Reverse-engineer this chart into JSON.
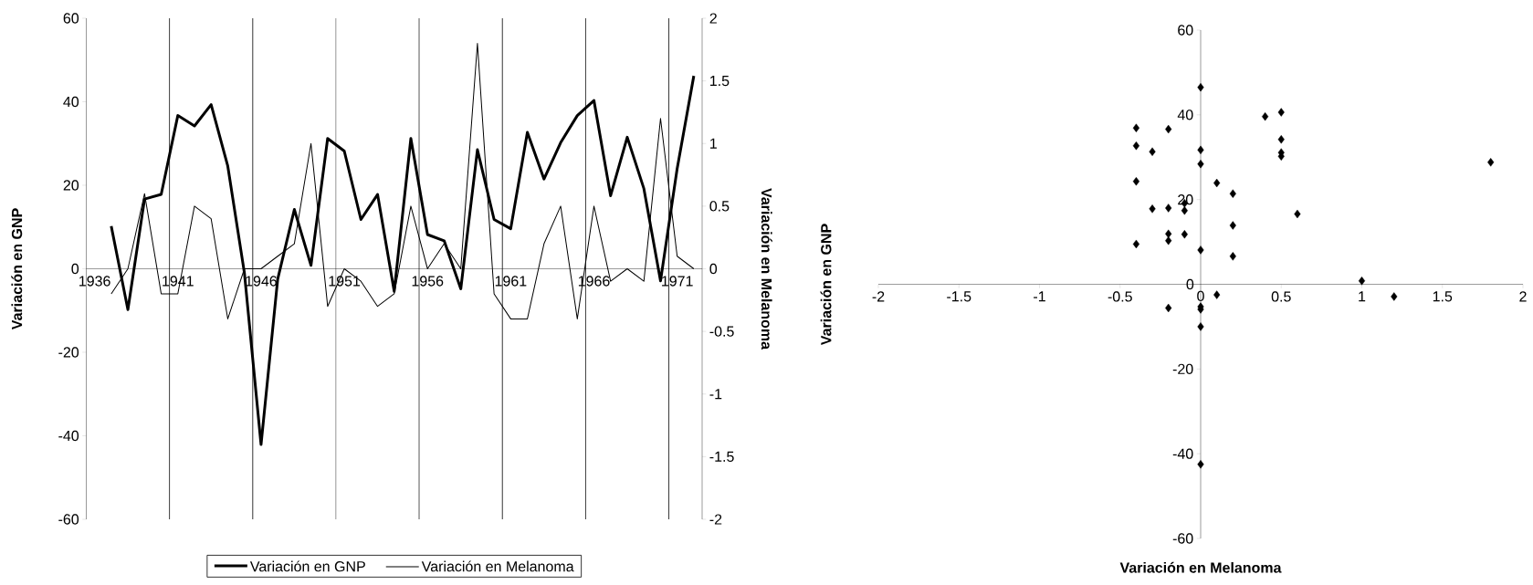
{
  "chart_data": [
    {
      "type": "line",
      "categories": [
        "1936",
        null,
        null,
        null,
        null,
        "1941",
        null,
        null,
        null,
        null,
        "1946",
        null,
        null,
        null,
        null,
        "1951",
        null,
        null,
        null,
        null,
        "1956",
        null,
        null,
        null,
        null,
        "1961",
        null,
        null,
        null,
        null,
        "1966",
        null,
        null,
        null,
        null,
        "1971",
        null
      ],
      "series": [
        {
          "name": "Variación en GNP",
          "color": "#000000",
          "values": [
            null,
            10.2,
            -9.8,
            16.7,
            17.8,
            36.7,
            34.2,
            39.3,
            24.6,
            -1,
            -42.1,
            -2.5,
            14.2,
            0.8,
            31.2,
            28.2,
            11.8,
            17.8,
            -5.4,
            31.2,
            8.2,
            6.7,
            -4.8,
            28.5,
            11.8,
            9.6,
            32.7,
            21.5,
            30.2,
            36.7,
            40.3,
            17.5,
            31.5,
            19.2,
            -2.9,
            24,
            46.2
          ]
        },
        {
          "name": "Variación en Melanoma",
          "color": "#000000",
          "axis": "y2",
          "values": [
            null,
            -0.2,
            0,
            0.6,
            -0.2,
            -0.2,
            0.5,
            0.4,
            -0.4,
            0,
            0,
            0.1,
            0.2,
            1,
            -0.3,
            0,
            -0.1,
            -0.3,
            -0.2,
            0.5,
            0,
            0.2,
            0,
            1.8,
            -0.2,
            -0.4,
            -0.4,
            0.2,
            0.5,
            -0.4,
            0.5,
            -0.1,
            0,
            -0.1,
            1.2,
            0.1,
            0
          ]
        }
      ],
      "ylabel": "Variación en GNP",
      "y2label": "Variación en Melanoma",
      "ylim": [
        -60,
        60
      ],
      "yticks": [
        -60,
        -40,
        -20,
        0,
        20,
        40,
        60
      ],
      "y2lim": [
        -2,
        2
      ],
      "y2ticks": [
        -2,
        -1.5,
        -1,
        -0.5,
        0,
        0.5,
        1,
        1.5,
        2
      ],
      "grid": "x",
      "legend": "bottom"
    },
    {
      "type": "scatter",
      "marker": "diamond",
      "color": "#000000",
      "x": [
        0,
        -0.4,
        -0.2,
        -0.4,
        -0.3,
        0,
        0,
        0.4,
        0.5,
        0.5,
        0.5,
        0.5,
        1.8,
        -0.4,
        0.1,
        0.2,
        -0.1,
        -0.3,
        -0.2,
        -0.1,
        0.6,
        0.2,
        -0.2,
        -0.1,
        -0.4,
        -0.2,
        0,
        0.2,
        1,
        0.1,
        1.2,
        -0.2,
        0,
        0,
        0,
        0
      ],
      "values": [
        46.5,
        36.9,
        36.6,
        32.7,
        31.3,
        31.7,
        28.4,
        39.6,
        40.6,
        34.2,
        31.1,
        30.2,
        28.8,
        24.3,
        23.9,
        21.4,
        19.1,
        17.8,
        18,
        17.4,
        16.6,
        13.9,
        11.9,
        11.8,
        9.5,
        10.3,
        8.1,
        6.6,
        0.8,
        -2.5,
        -2.9,
        -5.6,
        -5.3,
        -5.9,
        -10,
        -42.5
      ],
      "xlabel": "Variación en Melanoma",
      "ylabel": "Variación en GNP",
      "xlim": [
        -2,
        2
      ],
      "ylim": [
        -60,
        60
      ],
      "xticks": [
        -2,
        -1.5,
        -1,
        -0.5,
        0,
        0.5,
        1,
        1.5,
        2
      ],
      "yticks": [
        -60,
        -40,
        -20,
        0,
        20,
        40,
        60
      ]
    }
  ]
}
